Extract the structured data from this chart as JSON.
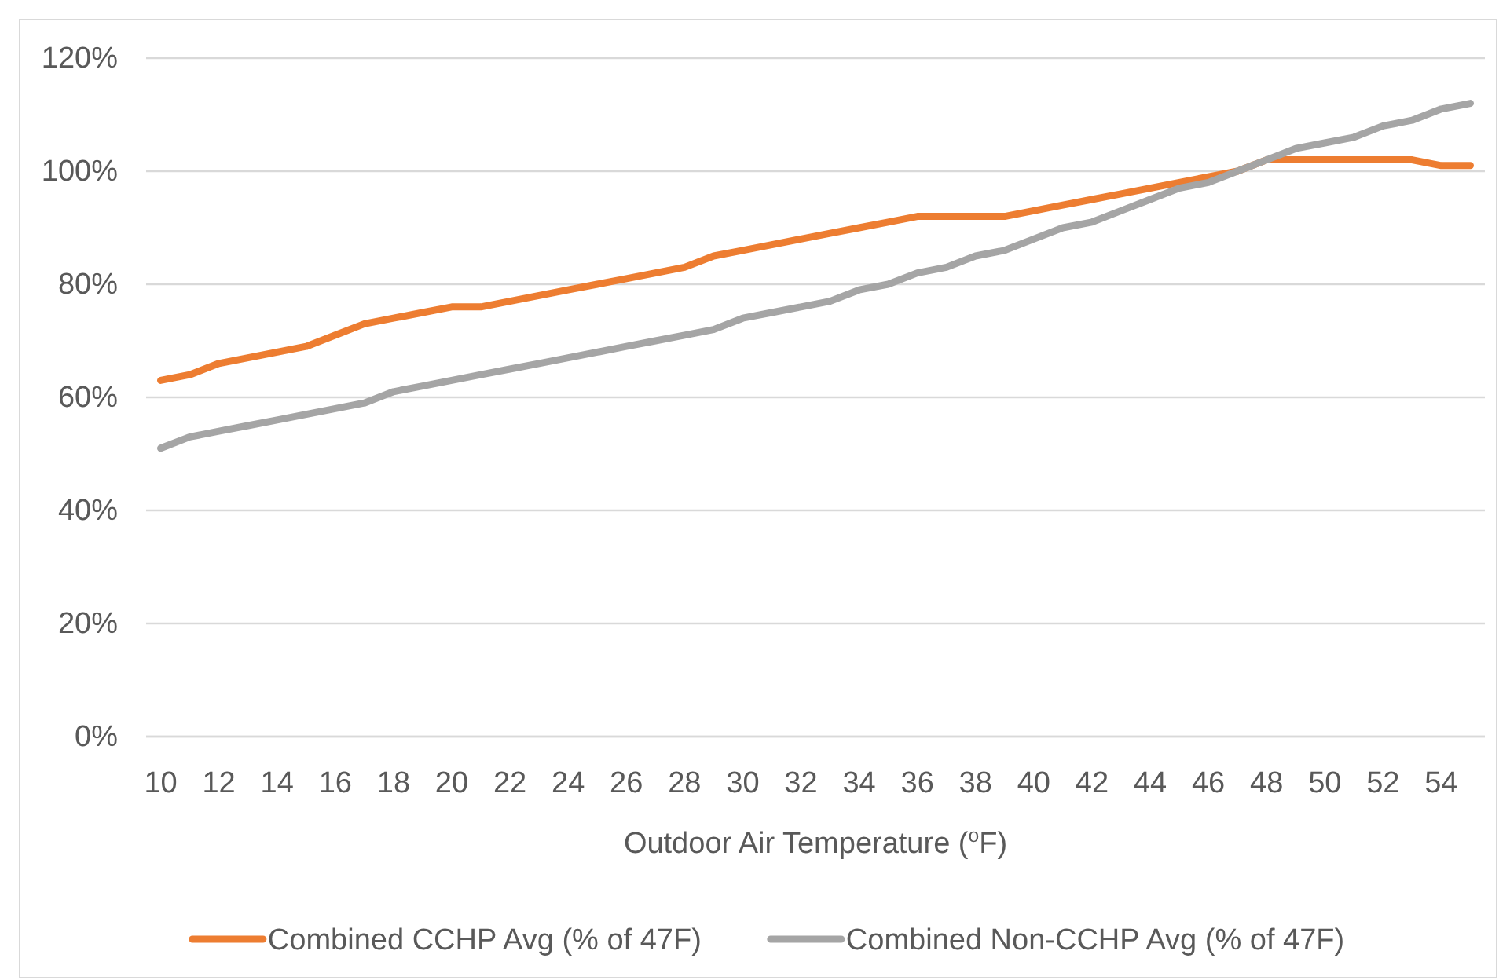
{
  "chart_data": {
    "type": "line",
    "xlabel": "Outdoor Air Temperature ($^{o}$F)",
    "categories": [
      "10",
      null,
      "12",
      null,
      "14",
      null,
      "16",
      null,
      "18",
      null,
      "20",
      null,
      "22",
      null,
      "24",
      null,
      "26",
      null,
      "28",
      null,
      "30",
      null,
      "32",
      null,
      "34",
      null,
      "36",
      null,
      "38",
      null,
      "40",
      null,
      "42",
      null,
      "44",
      null,
      "46",
      null,
      "48",
      null,
      "50",
      null,
      "52",
      null,
      "54",
      null
    ],
    "series": [
      {
        "name": "Combined CCHP Avg (% of 47F)",
        "color": "#ed7d31",
        "values": [
          63,
          64,
          66,
          67,
          68,
          69,
          71,
          73,
          74,
          75,
          76,
          76,
          77,
          78,
          79,
          80,
          81,
          82,
          83,
          85,
          86,
          87,
          88,
          89,
          90,
          91,
          92,
          92,
          92,
          92,
          93,
          94,
          95,
          96,
          97,
          98,
          99,
          100,
          102,
          102,
          102,
          102,
          102,
          102,
          101,
          101
        ]
      },
      {
        "name": "Combined Non-CCHP Avg (% of 47F)",
        "color": "#a5a5a5",
        "values": [
          51,
          53,
          54,
          55,
          56,
          57,
          58,
          59,
          61,
          62,
          63,
          64,
          65,
          66,
          67,
          68,
          69,
          70,
          71,
          72,
          74,
          75,
          76,
          77,
          79,
          80,
          82,
          83,
          85,
          86,
          88,
          90,
          91,
          93,
          95,
          97,
          98,
          100,
          102,
          104,
          105,
          106,
          108,
          109,
          111,
          112
        ]
      }
    ],
    "ylim": [
      0,
      120
    ],
    "yticks": [
      {
        "value": 0,
        "label": "0%"
      },
      {
        "value": 20,
        "label": "20%"
      },
      {
        "value": 40,
        "label": "40%"
      },
      {
        "value": 60,
        "label": "60%"
      },
      {
        "value": 80,
        "label": "80%"
      },
      {
        "value": 100,
        "label": "100%"
      },
      {
        "value": 120,
        "label": "120%"
      }
    ],
    "grid": "y",
    "legend": "bottom"
  }
}
